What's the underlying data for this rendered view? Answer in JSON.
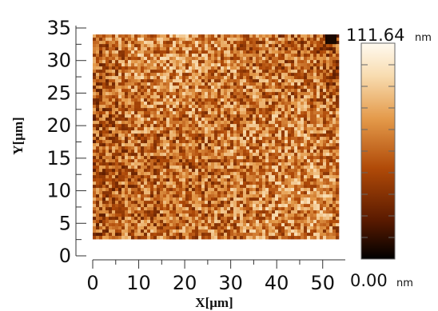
{
  "chart_data": {
    "type": "heatmap",
    "description_kind": "AFM topography map",
    "x_axis": {
      "label": "X[μm]",
      "range": [
        0,
        53
      ],
      "ticks": [
        "0",
        "10",
        "20",
        "30",
        "40",
        "50"
      ],
      "tick_values": [
        0,
        10,
        20,
        30,
        40,
        50
      ]
    },
    "y_axis": {
      "label": "Y[μm]",
      "range": [
        0,
        35
      ],
      "ticks": [
        "0",
        "5",
        "10",
        "15",
        "20",
        "25",
        "30",
        "35"
      ],
      "tick_values": [
        0,
        5,
        10,
        15,
        20,
        25,
        30,
        35
      ]
    },
    "data_extent": {
      "x": [
        0,
        53
      ],
      "y": [
        3,
        34
      ]
    },
    "colorbar": {
      "max_value": 111.64,
      "min_value": 0.0,
      "max_label": "111.64",
      "min_label": "0.00",
      "unit": "nm",
      "colors": [
        "#000000",
        "#5a1a00",
        "#b04a08",
        "#e49a4a",
        "#f8dcb0",
        "#fffaf0"
      ]
    },
    "mean_height_nm": 62,
    "grid": false
  }
}
